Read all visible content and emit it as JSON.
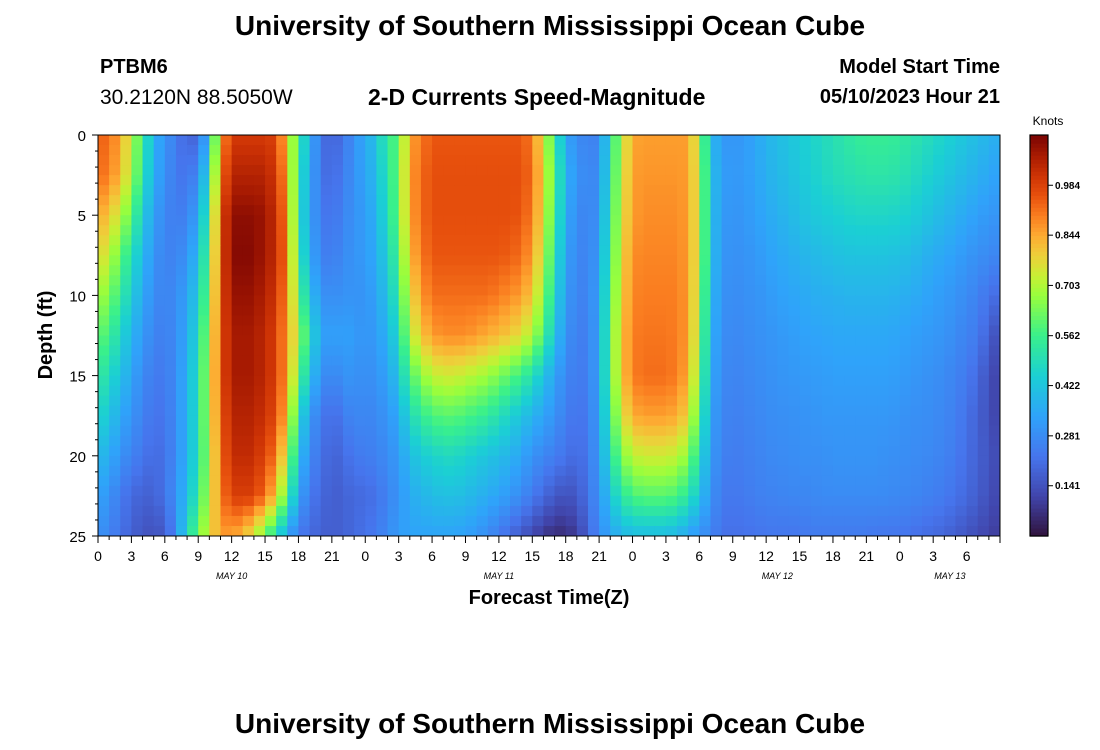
{
  "header": {
    "title": "University of Southern Mississippi Ocean Cube",
    "station": "PTBM6",
    "coords": "30.2120N  88.5050W",
    "subtitle": "2-D Currents Speed-Magnitude",
    "model_start_label": "Model Start Time",
    "model_start_value": "05/10/2023 Hour 21"
  },
  "footer": {
    "title": "University of Southern Mississippi Ocean Cube"
  },
  "chart_data": {
    "type": "heatmap",
    "title": "2-D Currents Speed-Magnitude",
    "xlabel": "Forecast Time(Z)",
    "ylabel": "Depth (ft)",
    "x_hours_range": [
      0,
      81
    ],
    "ylim": [
      0,
      25
    ],
    "y_ticks": [
      0,
      5,
      10,
      15,
      20,
      25
    ],
    "x_tick_labels": [
      "0",
      "3",
      "6",
      "9",
      "12",
      "15",
      "18",
      "21",
      "0",
      "3",
      "6",
      "9",
      "12",
      "15",
      "18",
      "21",
      "0",
      "3",
      "6",
      "9",
      "12",
      "15",
      "18",
      "21",
      "0",
      "3",
      "6"
    ],
    "date_labels": [
      {
        "label": "MAY 10",
        "hour": 12
      },
      {
        "label": "MAY 11",
        "hour": 36
      },
      {
        "label": "MAY 12",
        "hour": 61
      },
      {
        "label": "MAY 13",
        "hour": 76.5
      }
    ],
    "colorbar": {
      "title": "Knots",
      "min": 0.0,
      "max": 1.125,
      "tick_values": [
        0.141,
        0.281,
        0.422,
        0.562,
        0.703,
        0.844,
        0.984
      ],
      "tick_labels": [
        "0.141",
        "0.281",
        "0.422",
        "0.562",
        "0.703",
        "0.844",
        "0.984"
      ]
    },
    "speed_field_knots": {
      "depths_ft": [
        0,
        2.5,
        5,
        7.5,
        10,
        12.5,
        15,
        17.5,
        20,
        22.5,
        25
      ],
      "hours": [
        0,
        1,
        2,
        3,
        4,
        5,
        6,
        7,
        8,
        9,
        10,
        11,
        12,
        13,
        14,
        15,
        16,
        17,
        18,
        19,
        20,
        21,
        22,
        23,
        24,
        25,
        26,
        27,
        28,
        29,
        30,
        31,
        32,
        33,
        34,
        35,
        36,
        37,
        38,
        39,
        40,
        41,
        42,
        43,
        44,
        45,
        46,
        47,
        48,
        49,
        50,
        51,
        52,
        53,
        54,
        55,
        56,
        57,
        58,
        59,
        60,
        61,
        62,
        63,
        64,
        65,
        66,
        67,
        68,
        69,
        70,
        71,
        72,
        73,
        74,
        75,
        76,
        77,
        78,
        79,
        80,
        81
      ],
      "values": [
        [
          0.94,
          0.92,
          0.85,
          0.72,
          0.55,
          0.38,
          0.3,
          0.25,
          0.18,
          0.2,
          0.4,
          0.85,
          1.0,
          1.0,
          1.0,
          1.0,
          0.98,
          0.8,
          0.55,
          0.38,
          0.22,
          0.18,
          0.22,
          0.3,
          0.35,
          0.42,
          0.55,
          0.6,
          0.85,
          0.9,
          0.95,
          0.95,
          0.95,
          0.95,
          0.95,
          0.95,
          0.95,
          0.95,
          0.95,
          0.9,
          0.75,
          0.55,
          0.35,
          0.28,
          0.26,
          0.26,
          0.5,
          0.7,
          0.85,
          0.86,
          0.86,
          0.86,
          0.86,
          0.86,
          0.7,
          0.4,
          0.32,
          0.3,
          0.32,
          0.34,
          0.38,
          0.4,
          0.42,
          0.44,
          0.46,
          0.48,
          0.5,
          0.52,
          0.54,
          0.55,
          0.55,
          0.55,
          0.54,
          0.52,
          0.5,
          0.48,
          0.46,
          0.44,
          0.42,
          0.4,
          0.38,
          0.36
        ],
        [
          0.92,
          0.9,
          0.82,
          0.7,
          0.52,
          0.37,
          0.29,
          0.24,
          0.22,
          0.28,
          0.5,
          0.9,
          1.05,
          1.05,
          1.05,
          1.05,
          1.0,
          0.85,
          0.52,
          0.36,
          0.22,
          0.2,
          0.24,
          0.3,
          0.34,
          0.4,
          0.52,
          0.62,
          0.86,
          0.92,
          0.96,
          0.96,
          0.96,
          0.96,
          0.96,
          0.96,
          0.96,
          0.96,
          0.96,
          0.92,
          0.78,
          0.58,
          0.38,
          0.3,
          0.27,
          0.28,
          0.52,
          0.72,
          0.86,
          0.87,
          0.87,
          0.87,
          0.87,
          0.86,
          0.72,
          0.42,
          0.33,
          0.31,
          0.32,
          0.34,
          0.37,
          0.39,
          0.41,
          0.43,
          0.45,
          0.47,
          0.49,
          0.5,
          0.51,
          0.52,
          0.52,
          0.52,
          0.51,
          0.49,
          0.47,
          0.45,
          0.43,
          0.41,
          0.39,
          0.37,
          0.35,
          0.33
        ],
        [
          0.85,
          0.8,
          0.72,
          0.6,
          0.45,
          0.33,
          0.27,
          0.24,
          0.26,
          0.34,
          0.58,
          0.95,
          1.1,
          1.1,
          1.1,
          1.08,
          1.02,
          0.88,
          0.52,
          0.34,
          0.24,
          0.22,
          0.26,
          0.3,
          0.32,
          0.38,
          0.5,
          0.62,
          0.85,
          0.92,
          0.96,
          0.96,
          0.96,
          0.96,
          0.96,
          0.96,
          0.96,
          0.96,
          0.95,
          0.9,
          0.76,
          0.56,
          0.36,
          0.28,
          0.26,
          0.3,
          0.54,
          0.74,
          0.86,
          0.88,
          0.88,
          0.88,
          0.88,
          0.86,
          0.72,
          0.42,
          0.32,
          0.3,
          0.31,
          0.33,
          0.35,
          0.37,
          0.39,
          0.41,
          0.43,
          0.44,
          0.45,
          0.46,
          0.47,
          0.47,
          0.47,
          0.47,
          0.46,
          0.45,
          0.43,
          0.41,
          0.39,
          0.37,
          0.35,
          0.33,
          0.31,
          0.3
        ],
        [
          0.78,
          0.72,
          0.62,
          0.5,
          0.4,
          0.3,
          0.26,
          0.26,
          0.3,
          0.4,
          0.62,
          0.96,
          1.1,
          1.12,
          1.1,
          1.08,
          1.02,
          0.9,
          0.55,
          0.36,
          0.26,
          0.24,
          0.28,
          0.3,
          0.32,
          0.36,
          0.46,
          0.58,
          0.82,
          0.9,
          0.95,
          0.95,
          0.95,
          0.95,
          0.95,
          0.95,
          0.95,
          0.94,
          0.92,
          0.86,
          0.72,
          0.52,
          0.34,
          0.27,
          0.26,
          0.32,
          0.56,
          0.76,
          0.88,
          0.89,
          0.89,
          0.89,
          0.89,
          0.86,
          0.72,
          0.42,
          0.31,
          0.29,
          0.3,
          0.31,
          0.33,
          0.35,
          0.36,
          0.38,
          0.39,
          0.4,
          0.41,
          0.42,
          0.42,
          0.42,
          0.42,
          0.42,
          0.41,
          0.4,
          0.38,
          0.36,
          0.35,
          0.33,
          0.31,
          0.29,
          0.28,
          0.26
        ],
        [
          0.7,
          0.64,
          0.55,
          0.44,
          0.36,
          0.28,
          0.26,
          0.28,
          0.34,
          0.44,
          0.66,
          0.96,
          1.08,
          1.1,
          1.08,
          1.06,
          1.0,
          0.88,
          0.62,
          0.42,
          0.3,
          0.28,
          0.3,
          0.3,
          0.3,
          0.34,
          0.42,
          0.54,
          0.76,
          0.86,
          0.92,
          0.92,
          0.92,
          0.92,
          0.92,
          0.92,
          0.9,
          0.88,
          0.86,
          0.8,
          0.66,
          0.48,
          0.32,
          0.26,
          0.26,
          0.34,
          0.58,
          0.78,
          0.89,
          0.9,
          0.9,
          0.9,
          0.9,
          0.86,
          0.7,
          0.4,
          0.3,
          0.28,
          0.29,
          0.3,
          0.31,
          0.33,
          0.34,
          0.35,
          0.36,
          0.37,
          0.37,
          0.38,
          0.38,
          0.38,
          0.38,
          0.38,
          0.37,
          0.36,
          0.35,
          0.33,
          0.32,
          0.3,
          0.28,
          0.26,
          0.22,
          0.2
        ],
        [
          0.62,
          0.56,
          0.48,
          0.38,
          0.32,
          0.26,
          0.25,
          0.28,
          0.36,
          0.48,
          0.7,
          0.96,
          1.06,
          1.08,
          1.06,
          1.04,
          0.98,
          0.86,
          0.7,
          0.5,
          0.34,
          0.32,
          0.34,
          0.32,
          0.3,
          0.32,
          0.38,
          0.48,
          0.7,
          0.8,
          0.86,
          0.88,
          0.88,
          0.88,
          0.86,
          0.84,
          0.82,
          0.8,
          0.76,
          0.7,
          0.58,
          0.42,
          0.3,
          0.25,
          0.25,
          0.34,
          0.6,
          0.8,
          0.9,
          0.91,
          0.91,
          0.91,
          0.9,
          0.86,
          0.68,
          0.38,
          0.29,
          0.27,
          0.28,
          0.29,
          0.3,
          0.31,
          0.32,
          0.33,
          0.34,
          0.34,
          0.35,
          0.35,
          0.35,
          0.35,
          0.35,
          0.35,
          0.34,
          0.33,
          0.32,
          0.31,
          0.3,
          0.28,
          0.26,
          0.24,
          0.18,
          0.12
        ],
        [
          0.55,
          0.48,
          0.42,
          0.34,
          0.28,
          0.24,
          0.24,
          0.28,
          0.38,
          0.5,
          0.72,
          0.96,
          1.06,
          1.08,
          1.06,
          1.04,
          0.98,
          0.86,
          0.62,
          0.42,
          0.3,
          0.26,
          0.3,
          0.3,
          0.28,
          0.3,
          0.34,
          0.42,
          0.58,
          0.66,
          0.72,
          0.74,
          0.74,
          0.72,
          0.7,
          0.68,
          0.64,
          0.6,
          0.56,
          0.5,
          0.42,
          0.34,
          0.27,
          0.24,
          0.25,
          0.34,
          0.6,
          0.8,
          0.9,
          0.92,
          0.92,
          0.92,
          0.9,
          0.84,
          0.64,
          0.36,
          0.28,
          0.26,
          0.27,
          0.28,
          0.29,
          0.3,
          0.31,
          0.31,
          0.32,
          0.32,
          0.33,
          0.33,
          0.33,
          0.33,
          0.33,
          0.33,
          0.32,
          0.31,
          0.3,
          0.29,
          0.28,
          0.26,
          0.24,
          0.2,
          0.14,
          0.1
        ],
        [
          0.48,
          0.42,
          0.36,
          0.3,
          0.26,
          0.22,
          0.23,
          0.28,
          0.38,
          0.5,
          0.72,
          0.94,
          1.04,
          1.06,
          1.04,
          1.02,
          0.96,
          0.82,
          0.5,
          0.32,
          0.24,
          0.2,
          0.24,
          0.28,
          0.26,
          0.28,
          0.3,
          0.36,
          0.48,
          0.54,
          0.58,
          0.6,
          0.6,
          0.58,
          0.56,
          0.54,
          0.5,
          0.46,
          0.42,
          0.38,
          0.34,
          0.3,
          0.25,
          0.22,
          0.24,
          0.33,
          0.56,
          0.74,
          0.84,
          0.86,
          0.86,
          0.86,
          0.84,
          0.78,
          0.58,
          0.34,
          0.27,
          0.25,
          0.26,
          0.27,
          0.28,
          0.29,
          0.29,
          0.3,
          0.3,
          0.31,
          0.31,
          0.31,
          0.31,
          0.31,
          0.31,
          0.31,
          0.3,
          0.29,
          0.29,
          0.28,
          0.27,
          0.25,
          0.22,
          0.18,
          0.14,
          0.1
        ],
        [
          0.4,
          0.36,
          0.3,
          0.26,
          0.23,
          0.2,
          0.22,
          0.28,
          0.38,
          0.5,
          0.7,
          0.92,
          1.02,
          1.04,
          1.02,
          0.98,
          0.9,
          0.72,
          0.42,
          0.28,
          0.22,
          0.18,
          0.2,
          0.24,
          0.24,
          0.26,
          0.28,
          0.32,
          0.4,
          0.44,
          0.46,
          0.48,
          0.48,
          0.46,
          0.44,
          0.42,
          0.4,
          0.38,
          0.34,
          0.3,
          0.27,
          0.25,
          0.22,
          0.2,
          0.23,
          0.32,
          0.5,
          0.64,
          0.72,
          0.74,
          0.74,
          0.74,
          0.72,
          0.66,
          0.5,
          0.32,
          0.26,
          0.24,
          0.25,
          0.26,
          0.27,
          0.28,
          0.28,
          0.29,
          0.29,
          0.29,
          0.3,
          0.3,
          0.3,
          0.3,
          0.3,
          0.29,
          0.29,
          0.28,
          0.28,
          0.27,
          0.26,
          0.24,
          0.21,
          0.18,
          0.15,
          0.12
        ],
        [
          0.34,
          0.3,
          0.24,
          0.2,
          0.18,
          0.18,
          0.22,
          0.3,
          0.4,
          0.54,
          0.72,
          0.9,
          0.98,
          1.0,
          0.98,
          0.92,
          0.8,
          0.58,
          0.34,
          0.24,
          0.2,
          0.17,
          0.18,
          0.2,
          0.2,
          0.22,
          0.26,
          0.3,
          0.36,
          0.38,
          0.4,
          0.41,
          0.41,
          0.4,
          0.38,
          0.36,
          0.34,
          0.31,
          0.28,
          0.24,
          0.2,
          0.16,
          0.14,
          0.16,
          0.22,
          0.3,
          0.42,
          0.52,
          0.58,
          0.6,
          0.6,
          0.6,
          0.58,
          0.52,
          0.42,
          0.3,
          0.24,
          0.23,
          0.24,
          0.25,
          0.26,
          0.26,
          0.27,
          0.27,
          0.27,
          0.28,
          0.28,
          0.28,
          0.28,
          0.28,
          0.28,
          0.28,
          0.27,
          0.27,
          0.26,
          0.25,
          0.24,
          0.22,
          0.2,
          0.17,
          0.14,
          0.11
        ],
        [
          0.3,
          0.26,
          0.22,
          0.18,
          0.15,
          0.14,
          0.16,
          0.28,
          0.48,
          0.62,
          0.76,
          0.86,
          0.86,
          0.82,
          0.74,
          0.62,
          0.48,
          0.34,
          0.24,
          0.2,
          0.18,
          0.17,
          0.18,
          0.2,
          0.22,
          0.24,
          0.28,
          0.32,
          0.34,
          0.34,
          0.34,
          0.34,
          0.34,
          0.33,
          0.31,
          0.28,
          0.24,
          0.2,
          0.16,
          0.12,
          0.08,
          0.06,
          0.06,
          0.1,
          0.18,
          0.28,
          0.34,
          0.38,
          0.4,
          0.4,
          0.4,
          0.4,
          0.38,
          0.34,
          0.3,
          0.26,
          0.22,
          0.21,
          0.22,
          0.22,
          0.23,
          0.23,
          0.23,
          0.23,
          0.24,
          0.24,
          0.24,
          0.24,
          0.24,
          0.24,
          0.23,
          0.23,
          0.23,
          0.22,
          0.21,
          0.2,
          0.19,
          0.17,
          0.15,
          0.13,
          0.11,
          0.09
        ]
      ]
    }
  }
}
